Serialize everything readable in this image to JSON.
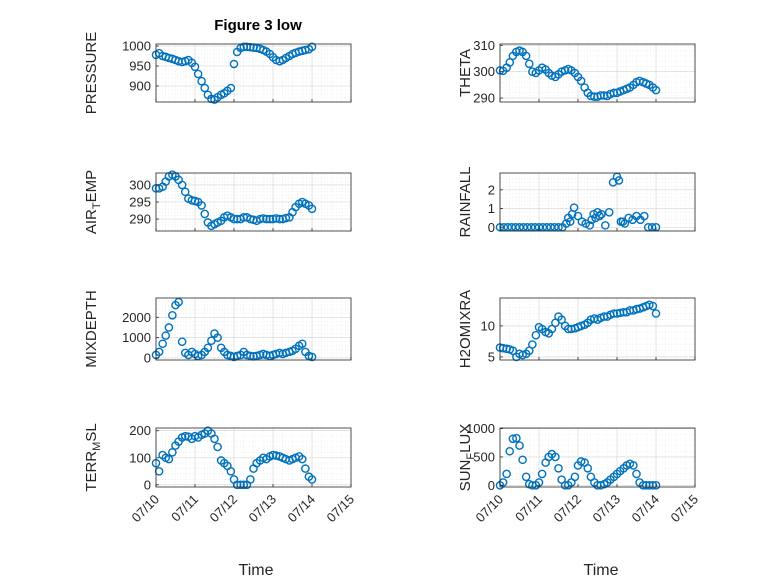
{
  "figure": {
    "title": "Figure 3 low",
    "xlabel": "Time",
    "marker_color": "#0072BD",
    "xtick_labels": [
      "07/10",
      "07/11",
      "07/12",
      "07/13",
      "07/14",
      "07/15"
    ]
  },
  "chart_data": [
    {
      "type": "scatter",
      "name": "PRESSURE",
      "ylabel": "PRESSURE",
      "ylim": [
        860,
        1005
      ],
      "yticks": [
        900,
        950,
        1000
      ],
      "xlim": [
        0,
        5
      ],
      "grid": true,
      "x": [
        0.0,
        0.08,
        0.17,
        0.25,
        0.33,
        0.42,
        0.5,
        0.58,
        0.67,
        0.75,
        0.83,
        0.92,
        1.0,
        1.08,
        1.17,
        1.25,
        1.33,
        1.42,
        1.5,
        1.58,
        1.67,
        1.75,
        1.83,
        1.92,
        2.0,
        2.08,
        2.17,
        2.25,
        2.33,
        2.42,
        2.5,
        2.58,
        2.67,
        2.75,
        2.83,
        2.92,
        3.0,
        3.08,
        3.17,
        3.25,
        3.33,
        3.42,
        3.5,
        3.58,
        3.67,
        3.75,
        3.83,
        3.92,
        4.0
      ],
      "y": [
        978,
        982,
        975,
        973,
        970,
        968,
        965,
        962,
        960,
        962,
        965,
        958,
        948,
        930,
        912,
        895,
        878,
        868,
        866,
        872,
        878,
        882,
        888,
        895,
        955,
        985,
        995,
        998,
        998,
        997,
        996,
        995,
        993,
        990,
        986,
        980,
        972,
        965,
        962,
        965,
        970,
        975,
        980,
        983,
        986,
        988,
        990,
        992,
        998
      ]
    },
    {
      "type": "scatter",
      "name": "THETA",
      "ylabel": "THETA",
      "ylim": [
        288.5,
        310.5
      ],
      "yticks": [
        290,
        300,
        310
      ],
      "xlim": [
        0,
        5
      ],
      "grid": true,
      "x": [
        0.0,
        0.08,
        0.17,
        0.25,
        0.33,
        0.42,
        0.5,
        0.58,
        0.67,
        0.75,
        0.83,
        0.92,
        1.0,
        1.08,
        1.17,
        1.25,
        1.33,
        1.42,
        1.5,
        1.58,
        1.67,
        1.75,
        1.83,
        1.92,
        2.0,
        2.08,
        2.17,
        2.25,
        2.33,
        2.42,
        2.5,
        2.58,
        2.67,
        2.75,
        2.83,
        2.92,
        3.0,
        3.08,
        3.17,
        3.25,
        3.33,
        3.42,
        3.5,
        3.58,
        3.67,
        3.75,
        3.83,
        3.92,
        4.0
      ],
      "y": [
        300.5,
        300.3,
        301.5,
        303.5,
        306.0,
        307.5,
        308.0,
        307.5,
        306.0,
        303.0,
        300.0,
        299.5,
        300.5,
        301.5,
        300.8,
        299.5,
        298.5,
        298.0,
        299.0,
        300.0,
        300.5,
        301.0,
        300.5,
        299.5,
        298.0,
        296.5,
        294.0,
        292.0,
        290.8,
        290.5,
        290.5,
        291.0,
        291.0,
        290.8,
        291.5,
        292.0,
        292.0,
        292.5,
        293.0,
        293.5,
        294.0,
        295.0,
        296.0,
        296.5,
        296.0,
        295.5,
        295.0,
        294.0,
        293.0
      ]
    },
    {
      "type": "scatter",
      "name": "AIR_TEMP",
      "ylabel": "AIR_TEMP",
      "ylim": [
        286.5,
        303.5
      ],
      "yticks": [
        290,
        295,
        300
      ],
      "xlim": [
        0,
        5
      ],
      "grid": true,
      "x": [
        0.0,
        0.08,
        0.17,
        0.25,
        0.33,
        0.42,
        0.5,
        0.58,
        0.67,
        0.75,
        0.83,
        0.92,
        1.0,
        1.08,
        1.17,
        1.25,
        1.33,
        1.42,
        1.5,
        1.58,
        1.67,
        1.75,
        1.83,
        1.92,
        2.0,
        2.08,
        2.17,
        2.25,
        2.33,
        2.42,
        2.5,
        2.58,
        2.67,
        2.75,
        2.83,
        2.92,
        3.0,
        3.08,
        3.17,
        3.25,
        3.33,
        3.42,
        3.5,
        3.58,
        3.67,
        3.75,
        3.83,
        3.92,
        4.0
      ],
      "y": [
        299.0,
        299.0,
        299.5,
        301.0,
        302.5,
        303.0,
        302.5,
        301.5,
        300.0,
        298.0,
        296.0,
        295.5,
        295.3,
        295.0,
        294.0,
        291.5,
        289.0,
        288.0,
        288.5,
        289.0,
        289.5,
        290.5,
        291.0,
        290.5,
        290.0,
        290.0,
        290.0,
        290.5,
        290.5,
        290.0,
        289.8,
        289.5,
        290.0,
        290.2,
        290.0,
        290.0,
        290.0,
        290.2,
        290.0,
        290.0,
        290.3,
        290.5,
        292.0,
        293.5,
        294.5,
        295.0,
        294.5,
        294.0,
        293.0
      ]
    },
    {
      "type": "scatter",
      "name": "RAINFALL",
      "ylabel": "RAINFALL",
      "ylim": [
        -0.2,
        2.9
      ],
      "yticks": [
        0,
        1,
        2
      ],
      "xlim": [
        0,
        5
      ],
      "grid": true,
      "x": [
        0.0,
        0.1,
        0.2,
        0.3,
        0.4,
        0.5,
        0.6,
        0.7,
        0.8,
        0.9,
        1.0,
        1.1,
        1.2,
        1.3,
        1.4,
        1.5,
        1.6,
        1.7,
        1.75,
        1.8,
        1.85,
        1.9,
        2.0,
        2.1,
        2.2,
        2.3,
        2.35,
        2.4,
        2.45,
        2.5,
        2.55,
        2.6,
        2.7,
        2.8,
        2.9,
        3.0,
        3.05,
        3.1,
        3.15,
        3.2,
        3.3,
        3.4,
        3.5,
        3.6,
        3.7,
        3.8,
        3.9,
        4.0
      ],
      "y": [
        0,
        0,
        0,
        0,
        0,
        0,
        0,
        0,
        0,
        0,
        0,
        0,
        0,
        0,
        0,
        0,
        0,
        0.2,
        0.5,
        0.3,
        0.7,
        1.05,
        0.6,
        0.3,
        0.2,
        0.1,
        0.4,
        0.7,
        0.5,
        0.8,
        0.6,
        0.7,
        0.1,
        0.8,
        2.4,
        2.7,
        2.5,
        0.3,
        0.3,
        0.2,
        0.5,
        0.4,
        0.6,
        0.4,
        0.6,
        0,
        0,
        0
      ]
    },
    {
      "type": "scatter",
      "name": "MIXDEPTH",
      "ylabel": "MIXDEPTH",
      "ylim": [
        -100,
        2950
      ],
      "yticks": [
        0,
        1000,
        2000
      ],
      "xlim": [
        0,
        5
      ],
      "grid": true,
      "x": [
        0.0,
        0.08,
        0.17,
        0.25,
        0.33,
        0.42,
        0.5,
        0.58,
        0.67,
        0.75,
        0.83,
        0.92,
        1.0,
        1.08,
        1.17,
        1.25,
        1.33,
        1.42,
        1.5,
        1.58,
        1.67,
        1.75,
        1.83,
        1.92,
        2.0,
        2.08,
        2.17,
        2.25,
        2.33,
        2.42,
        2.5,
        2.58,
        2.67,
        2.75,
        2.83,
        2.92,
        3.0,
        3.08,
        3.17,
        3.25,
        3.33,
        3.42,
        3.5,
        3.58,
        3.67,
        3.75,
        3.83,
        3.92,
        4.0
      ],
      "y": [
        150,
        300,
        700,
        1100,
        1500,
        2100,
        2600,
        2750,
        800,
        250,
        150,
        300,
        200,
        100,
        150,
        300,
        500,
        850,
        1200,
        1000,
        500,
        300,
        150,
        100,
        50,
        100,
        150,
        300,
        150,
        100,
        80,
        100,
        150,
        200,
        150,
        100,
        150,
        200,
        250,
        200,
        250,
        300,
        350,
        450,
        600,
        700,
        300,
        100,
        50
      ]
    },
    {
      "type": "scatter",
      "name": "H2OMIXRA",
      "ylabel": "H2OMIXRA",
      "ylim": [
        4.5,
        14.5
      ],
      "yticks": [
        5,
        10
      ],
      "xlim": [
        0,
        5
      ],
      "grid": true,
      "x": [
        0.0,
        0.08,
        0.17,
        0.25,
        0.33,
        0.42,
        0.5,
        0.58,
        0.67,
        0.75,
        0.83,
        0.92,
        1.0,
        1.08,
        1.17,
        1.25,
        1.33,
        1.42,
        1.5,
        1.58,
        1.67,
        1.75,
        1.83,
        1.92,
        2.0,
        2.08,
        2.17,
        2.25,
        2.33,
        2.42,
        2.5,
        2.58,
        2.67,
        2.75,
        2.83,
        2.92,
        3.0,
        3.08,
        3.17,
        3.25,
        3.33,
        3.42,
        3.5,
        3.58,
        3.67,
        3.75,
        3.83,
        3.92,
        4.0
      ],
      "y": [
        6.5,
        6.4,
        6.3,
        6.2,
        6.0,
        5.0,
        5.5,
        5.3,
        5.5,
        6.0,
        7.0,
        8.5,
        9.8,
        9.5,
        9.0,
        8.8,
        9.5,
        10.5,
        11.5,
        11.0,
        10.0,
        9.5,
        9.5,
        9.6,
        9.8,
        10.0,
        10.2,
        10.5,
        11.0,
        11.2,
        11.0,
        11.3,
        11.5,
        11.5,
        11.8,
        12.0,
        12.0,
        12.1,
        12.2,
        12.2,
        12.5,
        12.5,
        12.7,
        12.8,
        13.0,
        13.2,
        13.4,
        13.2,
        12.0
      ]
    },
    {
      "type": "scatter",
      "name": "TERR_MSL",
      "ylabel": "TERR_MSL",
      "ylim": [
        -8,
        210
      ],
      "yticks": [
        0,
        100,
        200
      ],
      "xlim": [
        0,
        5
      ],
      "grid": true,
      "x": [
        0.0,
        0.08,
        0.17,
        0.25,
        0.33,
        0.42,
        0.5,
        0.58,
        0.67,
        0.75,
        0.83,
        0.92,
        1.0,
        1.08,
        1.17,
        1.25,
        1.33,
        1.42,
        1.5,
        1.58,
        1.67,
        1.75,
        1.83,
        1.92,
        2.0,
        2.08,
        2.17,
        2.25,
        2.33,
        2.42,
        2.5,
        2.58,
        2.67,
        2.75,
        2.83,
        2.92,
        3.0,
        3.08,
        3.17,
        3.25,
        3.33,
        3.42,
        3.5,
        3.58,
        3.67,
        3.75,
        3.83,
        3.92,
        4.0
      ],
      "y": [
        80,
        50,
        110,
        100,
        95,
        120,
        145,
        160,
        175,
        180,
        178,
        170,
        180,
        175,
        185,
        190,
        200,
        190,
        170,
        140,
        90,
        80,
        70,
        50,
        20,
        0,
        0,
        0,
        0,
        20,
        60,
        80,
        90,
        100,
        95,
        105,
        110,
        108,
        105,
        100,
        95,
        90,
        95,
        100,
        105,
        95,
        60,
        30,
        20
      ]
    },
    {
      "type": "scatter",
      "name": "SUN_FLUX",
      "ylabel": "SUN_FLUX",
      "ylim": [
        -30,
        1010
      ],
      "yticks": [
        0,
        500,
        1000
      ],
      "xlim": [
        0,
        5
      ],
      "grid": true,
      "x": [
        0.0,
        0.08,
        0.17,
        0.25,
        0.33,
        0.42,
        0.5,
        0.58,
        0.67,
        0.75,
        0.83,
        0.92,
        1.0,
        1.08,
        1.17,
        1.25,
        1.33,
        1.42,
        1.5,
        1.58,
        1.67,
        1.75,
        1.83,
        1.92,
        2.0,
        2.08,
        2.17,
        2.25,
        2.33,
        2.42,
        2.5,
        2.58,
        2.67,
        2.75,
        2.83,
        2.92,
        3.0,
        3.08,
        3.17,
        3.25,
        3.33,
        3.42,
        3.5,
        3.58,
        3.67,
        3.75,
        3.83,
        3.92,
        4.0
      ],
      "y": [
        0,
        50,
        200,
        600,
        820,
        830,
        700,
        450,
        150,
        20,
        0,
        0,
        50,
        200,
        400,
        500,
        550,
        500,
        300,
        100,
        0,
        0,
        50,
        150,
        350,
        420,
        400,
        300,
        150,
        50,
        0,
        0,
        20,
        50,
        100,
        150,
        200,
        250,
        300,
        350,
        380,
        350,
        200,
        50,
        0,
        0,
        0,
        0,
        0
      ]
    }
  ]
}
